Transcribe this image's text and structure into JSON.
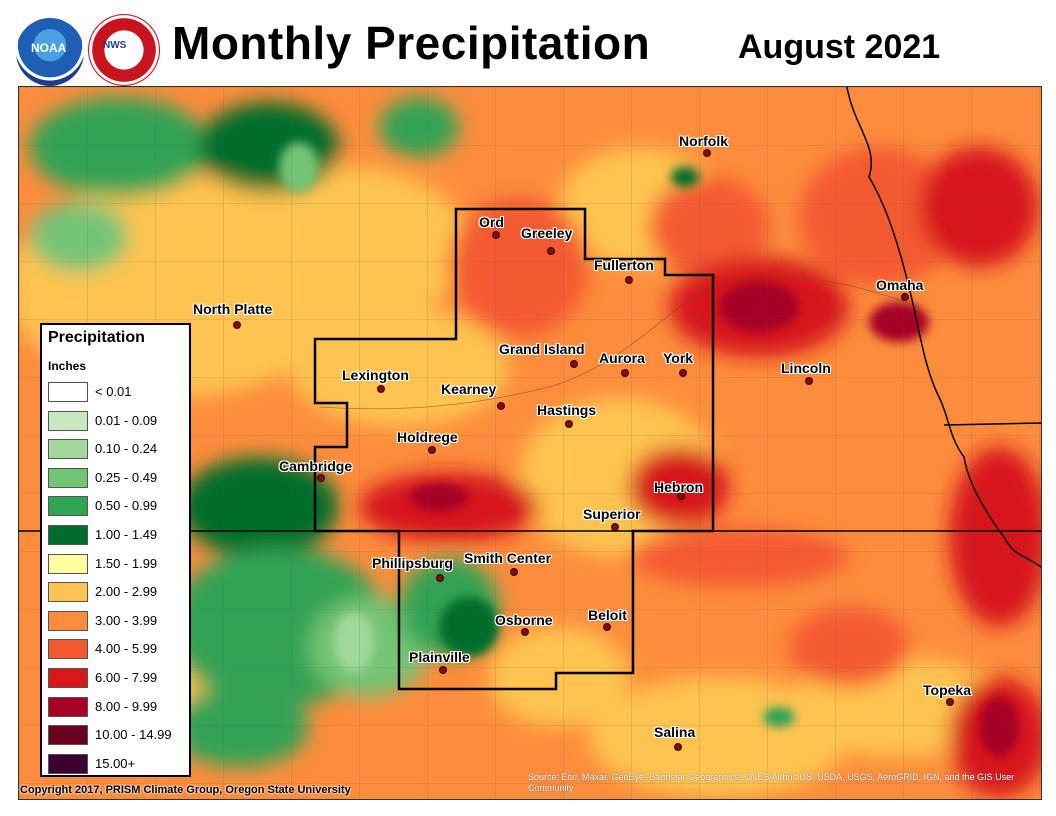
{
  "header": {
    "title": "Monthly Precipitation",
    "date": "August 2021",
    "noaa_logo_text": "NOAA",
    "nws_logo_text": "NWS"
  },
  "legend": {
    "title": "Precipitation",
    "unit": "Inches",
    "classes": [
      {
        "label": "< 0.01",
        "color": "#ffffff"
      },
      {
        "label": "0.01 - 0.09",
        "color": "#c7e9c0"
      },
      {
        "label": "0.10 - 0.24",
        "color": "#a1d99b"
      },
      {
        "label": "0.25 - 0.49",
        "color": "#74c476"
      },
      {
        "label": "0.50 - 0.99",
        "color": "#31a354"
      },
      {
        "label": "1.00 - 1.49",
        "color": "#006d2c"
      },
      {
        "label": "1.50 - 1.99",
        "color": "#ffffa0"
      },
      {
        "label": "2.00 - 2.99",
        "color": "#fec44f"
      },
      {
        "label": "3.00 - 3.99",
        "color": "#fd8d3c"
      },
      {
        "label": "4.00 - 5.99",
        "color": "#f45a30"
      },
      {
        "label": "6.00 - 7.99",
        "color": "#d7191c"
      },
      {
        "label": "8.00 - 9.99",
        "color": "#a50026"
      },
      {
        "label": "10.00 - 14.99",
        "color": "#67001f"
      },
      {
        "label": "15.00+",
        "color": "#3d0030"
      }
    ]
  },
  "cities": [
    {
      "name": "Norfolk"
    },
    {
      "name": "Ord"
    },
    {
      "name": "Greeley"
    },
    {
      "name": "Fullerton"
    },
    {
      "name": "Omaha"
    },
    {
      "name": "North Platte"
    },
    {
      "name": "Grand Island"
    },
    {
      "name": "Aurora"
    },
    {
      "name": "York"
    },
    {
      "name": "Lincoln"
    },
    {
      "name": "Lexington"
    },
    {
      "name": "Kearney"
    },
    {
      "name": "Hastings"
    },
    {
      "name": "Holdrege"
    },
    {
      "name": "Cambridge"
    },
    {
      "name": "Hebron"
    },
    {
      "name": "Superior"
    },
    {
      "name": "Phillipsburg"
    },
    {
      "name": "Smith Center"
    },
    {
      "name": "Osborne"
    },
    {
      "name": "Beloit"
    },
    {
      "name": "Plainville"
    },
    {
      "name": "Topeka"
    },
    {
      "name": "Salina"
    }
  ],
  "footer": {
    "copyright": "Copyright 2017, PRISM Climate Group, Oregon State University",
    "credits": "Source: Esri, Maxar, GeoEye, Earthstar Geographics, CNES/Airbus DS, USDA, USGS, AeroGRID, IGN, and the GIS User Community"
  },
  "colors": {
    "state_border": "#000000",
    "county_line": "#555555"
  }
}
